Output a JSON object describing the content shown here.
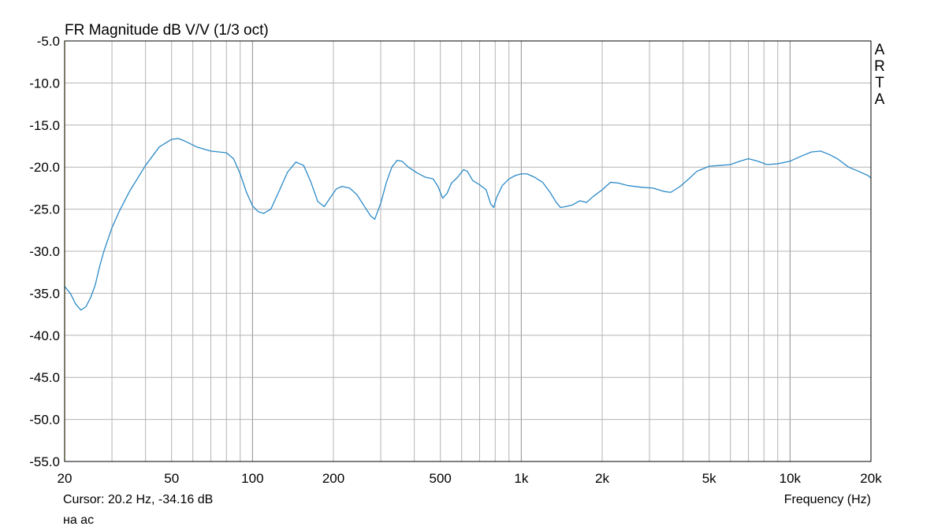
{
  "chart_data": {
    "type": "line",
    "title": "FR Magnitude dB V/V (1/3 oct)",
    "xlabel": "Frequency (Hz)",
    "ylabel": "",
    "x_scale": "log",
    "xlim": [
      20,
      20000
    ],
    "ylim": [
      -55.0,
      -5.0
    ],
    "grid": true,
    "x_ticks": [
      {
        "value": 20,
        "label": "20"
      },
      {
        "value": 50,
        "label": "50"
      },
      {
        "value": 100,
        "label": "100"
      },
      {
        "value": 200,
        "label": "200"
      },
      {
        "value": 500,
        "label": "500"
      },
      {
        "value": 1000,
        "label": "1k"
      },
      {
        "value": 2000,
        "label": "2k"
      },
      {
        "value": 5000,
        "label": "5k"
      },
      {
        "value": 10000,
        "label": "10k"
      },
      {
        "value": 20000,
        "label": "20k"
      }
    ],
    "y_ticks": [
      {
        "value": -5,
        "label": "-5.0"
      },
      {
        "value": -10,
        "label": "-10.0"
      },
      {
        "value": -15,
        "label": "-15.0"
      },
      {
        "value": -20,
        "label": "-20.0"
      },
      {
        "value": -25,
        "label": "-25.0"
      },
      {
        "value": -30,
        "label": "-30.0"
      },
      {
        "value": -35,
        "label": "-35.0"
      },
      {
        "value": -40,
        "label": "-40.0"
      },
      {
        "value": -45,
        "label": "-45.0"
      },
      {
        "value": -50,
        "label": "-50.0"
      },
      {
        "value": -55,
        "label": "-55.0"
      }
    ],
    "series": [
      {
        "color": "#2b8ac8",
        "points": [
          [
            20,
            -34.2
          ],
          [
            21,
            -35.0
          ],
          [
            22,
            -36.3
          ],
          [
            23,
            -37.0
          ],
          [
            24,
            -36.6
          ],
          [
            25,
            -35.5
          ],
          [
            26,
            -34.0
          ],
          [
            27,
            -31.8
          ],
          [
            28,
            -30.0
          ],
          [
            30,
            -27.2
          ],
          [
            32,
            -25.2
          ],
          [
            35,
            -22.8
          ],
          [
            40,
            -19.8
          ],
          [
            45,
            -17.6
          ],
          [
            50,
            -16.7
          ],
          [
            53,
            -16.6
          ],
          [
            56,
            -16.9
          ],
          [
            62,
            -17.6
          ],
          [
            70,
            -18.1
          ],
          [
            80,
            -18.3
          ],
          [
            85,
            -19.0
          ],
          [
            90,
            -20.8
          ],
          [
            95,
            -23.0
          ],
          [
            100,
            -24.6
          ],
          [
            105,
            -25.3
          ],
          [
            110,
            -25.5
          ],
          [
            117,
            -25.0
          ],
          [
            125,
            -23.0
          ],
          [
            135,
            -20.6
          ],
          [
            145,
            -19.4
          ],
          [
            155,
            -19.8
          ],
          [
            165,
            -21.8
          ],
          [
            175,
            -24.1
          ],
          [
            185,
            -24.7
          ],
          [
            195,
            -23.6
          ],
          [
            205,
            -22.6
          ],
          [
            215,
            -22.3
          ],
          [
            230,
            -22.5
          ],
          [
            245,
            -23.3
          ],
          [
            260,
            -24.6
          ],
          [
            275,
            -25.8
          ],
          [
            285,
            -26.2
          ],
          [
            300,
            -24.3
          ],
          [
            315,
            -21.8
          ],
          [
            330,
            -20.0
          ],
          [
            345,
            -19.2
          ],
          [
            360,
            -19.3
          ],
          [
            380,
            -20.0
          ],
          [
            410,
            -20.7
          ],
          [
            440,
            -21.2
          ],
          [
            470,
            -21.4
          ],
          [
            490,
            -22.3
          ],
          [
            510,
            -23.7
          ],
          [
            530,
            -23.1
          ],
          [
            550,
            -21.9
          ],
          [
            580,
            -21.2
          ],
          [
            610,
            -20.3
          ],
          [
            630,
            -20.5
          ],
          [
            660,
            -21.6
          ],
          [
            700,
            -22.1
          ],
          [
            740,
            -22.7
          ],
          [
            770,
            -24.4
          ],
          [
            790,
            -24.8
          ],
          [
            810,
            -23.6
          ],
          [
            850,
            -22.2
          ],
          [
            900,
            -21.4
          ],
          [
            950,
            -21.0
          ],
          [
            1000,
            -20.8
          ],
          [
            1050,
            -20.8
          ],
          [
            1120,
            -21.2
          ],
          [
            1200,
            -21.8
          ],
          [
            1280,
            -23.0
          ],
          [
            1350,
            -24.2
          ],
          [
            1400,
            -24.8
          ],
          [
            1460,
            -24.7
          ],
          [
            1550,
            -24.5
          ],
          [
            1650,
            -24.0
          ],
          [
            1700,
            -24.1
          ],
          [
            1750,
            -24.2
          ],
          [
            1850,
            -23.5
          ],
          [
            2000,
            -22.7
          ],
          [
            2150,
            -21.8
          ],
          [
            2300,
            -21.9
          ],
          [
            2500,
            -22.2
          ],
          [
            2800,
            -22.4
          ],
          [
            3100,
            -22.5
          ],
          [
            3400,
            -22.9
          ],
          [
            3600,
            -23.0
          ],
          [
            3900,
            -22.3
          ],
          [
            4200,
            -21.4
          ],
          [
            4500,
            -20.5
          ],
          [
            5000,
            -19.9
          ],
          [
            5500,
            -19.8
          ],
          [
            6000,
            -19.7
          ],
          [
            6500,
            -19.3
          ],
          [
            7000,
            -19.0
          ],
          [
            7600,
            -19.3
          ],
          [
            8200,
            -19.7
          ],
          [
            9000,
            -19.6
          ],
          [
            10000,
            -19.3
          ],
          [
            11000,
            -18.7
          ],
          [
            12000,
            -18.2
          ],
          [
            13000,
            -18.1
          ],
          [
            14000,
            -18.5
          ],
          [
            15000,
            -19.0
          ],
          [
            16500,
            -20.0
          ],
          [
            18000,
            -20.5
          ],
          [
            19500,
            -21.0
          ],
          [
            20000,
            -21.3
          ]
        ]
      }
    ]
  },
  "cursor_text": "Cursor: 20.2 Hz, -34.16 dB",
  "note_text": "на ас",
  "brand_letters": [
    "A",
    "R",
    "T",
    "A"
  ],
  "colors": {
    "background": "#ffffff",
    "grid": "#b4b4b4",
    "frame": "#000000",
    "cursor_line": "#e0c000",
    "trace": "#2b8ac8"
  }
}
